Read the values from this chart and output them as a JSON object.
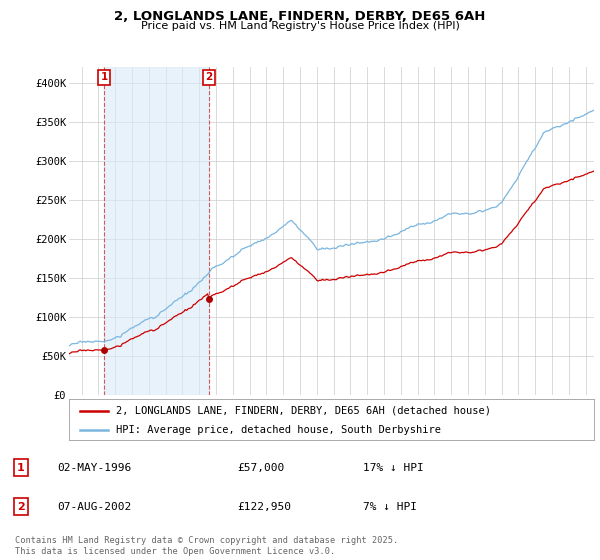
{
  "title": "2, LONGLANDS LANE, FINDERN, DERBY, DE65 6AH",
  "subtitle": "Price paid vs. HM Land Registry's House Price Index (HPI)",
  "xlim_start": 1994.25,
  "xlim_end": 2025.5,
  "ylim_min": 0,
  "ylim_max": 420000,
  "yticks": [
    0,
    50000,
    100000,
    150000,
    200000,
    250000,
    300000,
    350000,
    400000
  ],
  "ytick_labels": [
    "£0",
    "£50K",
    "£100K",
    "£150K",
    "£200K",
    "£250K",
    "£300K",
    "£350K",
    "£400K"
  ],
  "sale1_date": 1996.33,
  "sale1_price": 57000,
  "sale1_label": "1",
  "sale2_date": 2002.58,
  "sale2_price": 122950,
  "sale2_label": "2",
  "hpi_color": "#7ab6e0",
  "hpi_fill_color": "#daeaf7",
  "price_color": "#cc0000",
  "marker_color": "#aa0000",
  "legend_label_price": "2, LONGLANDS LANE, FINDERN, DERBY, DE65 6AH (detached house)",
  "legend_label_hpi": "HPI: Average price, detached house, South Derbyshire",
  "background_color": "#ffffff",
  "plot_background": "#ffffff",
  "grid_color": "#cccccc"
}
